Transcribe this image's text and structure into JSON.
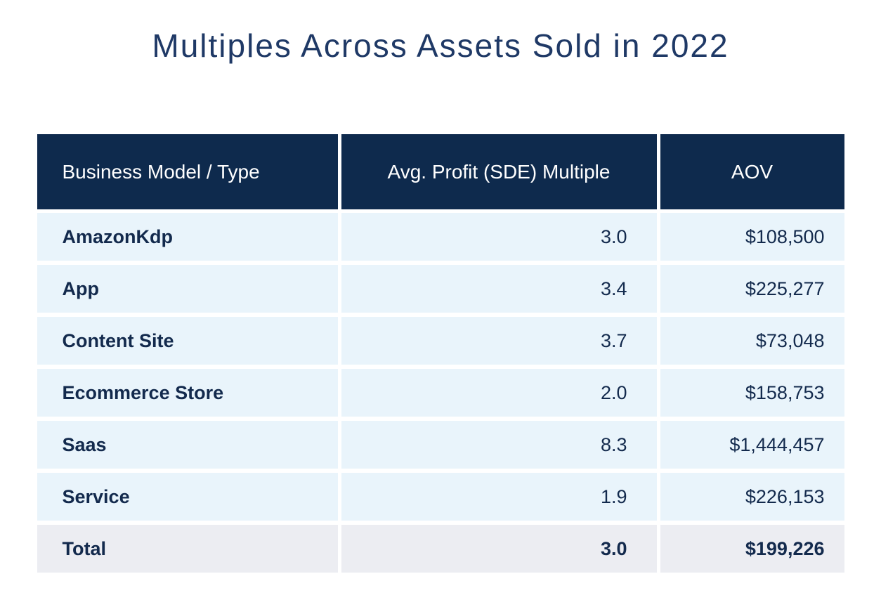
{
  "title": "Multiples Across Assets Sold in 2022",
  "table": {
    "columns": [
      "Business Model / Type",
      "Avg. Profit (SDE) Multiple",
      "AOV"
    ],
    "rows": [
      {
        "label": "AmazonKdp",
        "multiple": "3.0",
        "aov": "$108,500",
        "is_total": false
      },
      {
        "label": "App",
        "multiple": "3.4",
        "aov": "$225,277",
        "is_total": false
      },
      {
        "label": "Content Site",
        "multiple": "3.7",
        "aov": "$73,048",
        "is_total": false
      },
      {
        "label": "Ecommerce Store",
        "multiple": "2.0",
        "aov": "$158,753",
        "is_total": false
      },
      {
        "label": "Saas",
        "multiple": "8.3",
        "aov": "$1,444,457",
        "is_total": false
      },
      {
        "label": "Service",
        "multiple": "1.9",
        "aov": "$226,153",
        "is_total": false
      },
      {
        "label": "Total",
        "multiple": "3.0",
        "aov": "$199,226",
        "is_total": true
      }
    ]
  },
  "colors": {
    "header_background": "#0e2a4d",
    "header_text": "#ffffff",
    "row_background": "#e9f4fb",
    "total_row_background": "#ecedf2",
    "body_text": "#132a4d",
    "title_text": "#1f3966",
    "page_background": "#ffffff"
  },
  "chart_data": {
    "type": "table",
    "title": "Multiples Across Assets Sold in 2022",
    "columns": [
      "Business Model / Type",
      "Avg. Profit (SDE) Multiple",
      "AOV"
    ],
    "rows": [
      [
        "AmazonKdp",
        3.0,
        108500
      ],
      [
        "App",
        3.4,
        225277
      ],
      [
        "Content Site",
        3.7,
        73048
      ],
      [
        "Ecommerce Store",
        2.0,
        158753
      ],
      [
        "Saas",
        8.3,
        1444457
      ],
      [
        "Service",
        1.9,
        226153
      ]
    ],
    "total_row": [
      "Total",
      3.0,
      199226
    ],
    "layout_hints": {
      "header_style": "dark-navy-banded",
      "value_alignment": "right",
      "label_alignment": "left",
      "grid": "white-gaps-between-cells"
    }
  }
}
